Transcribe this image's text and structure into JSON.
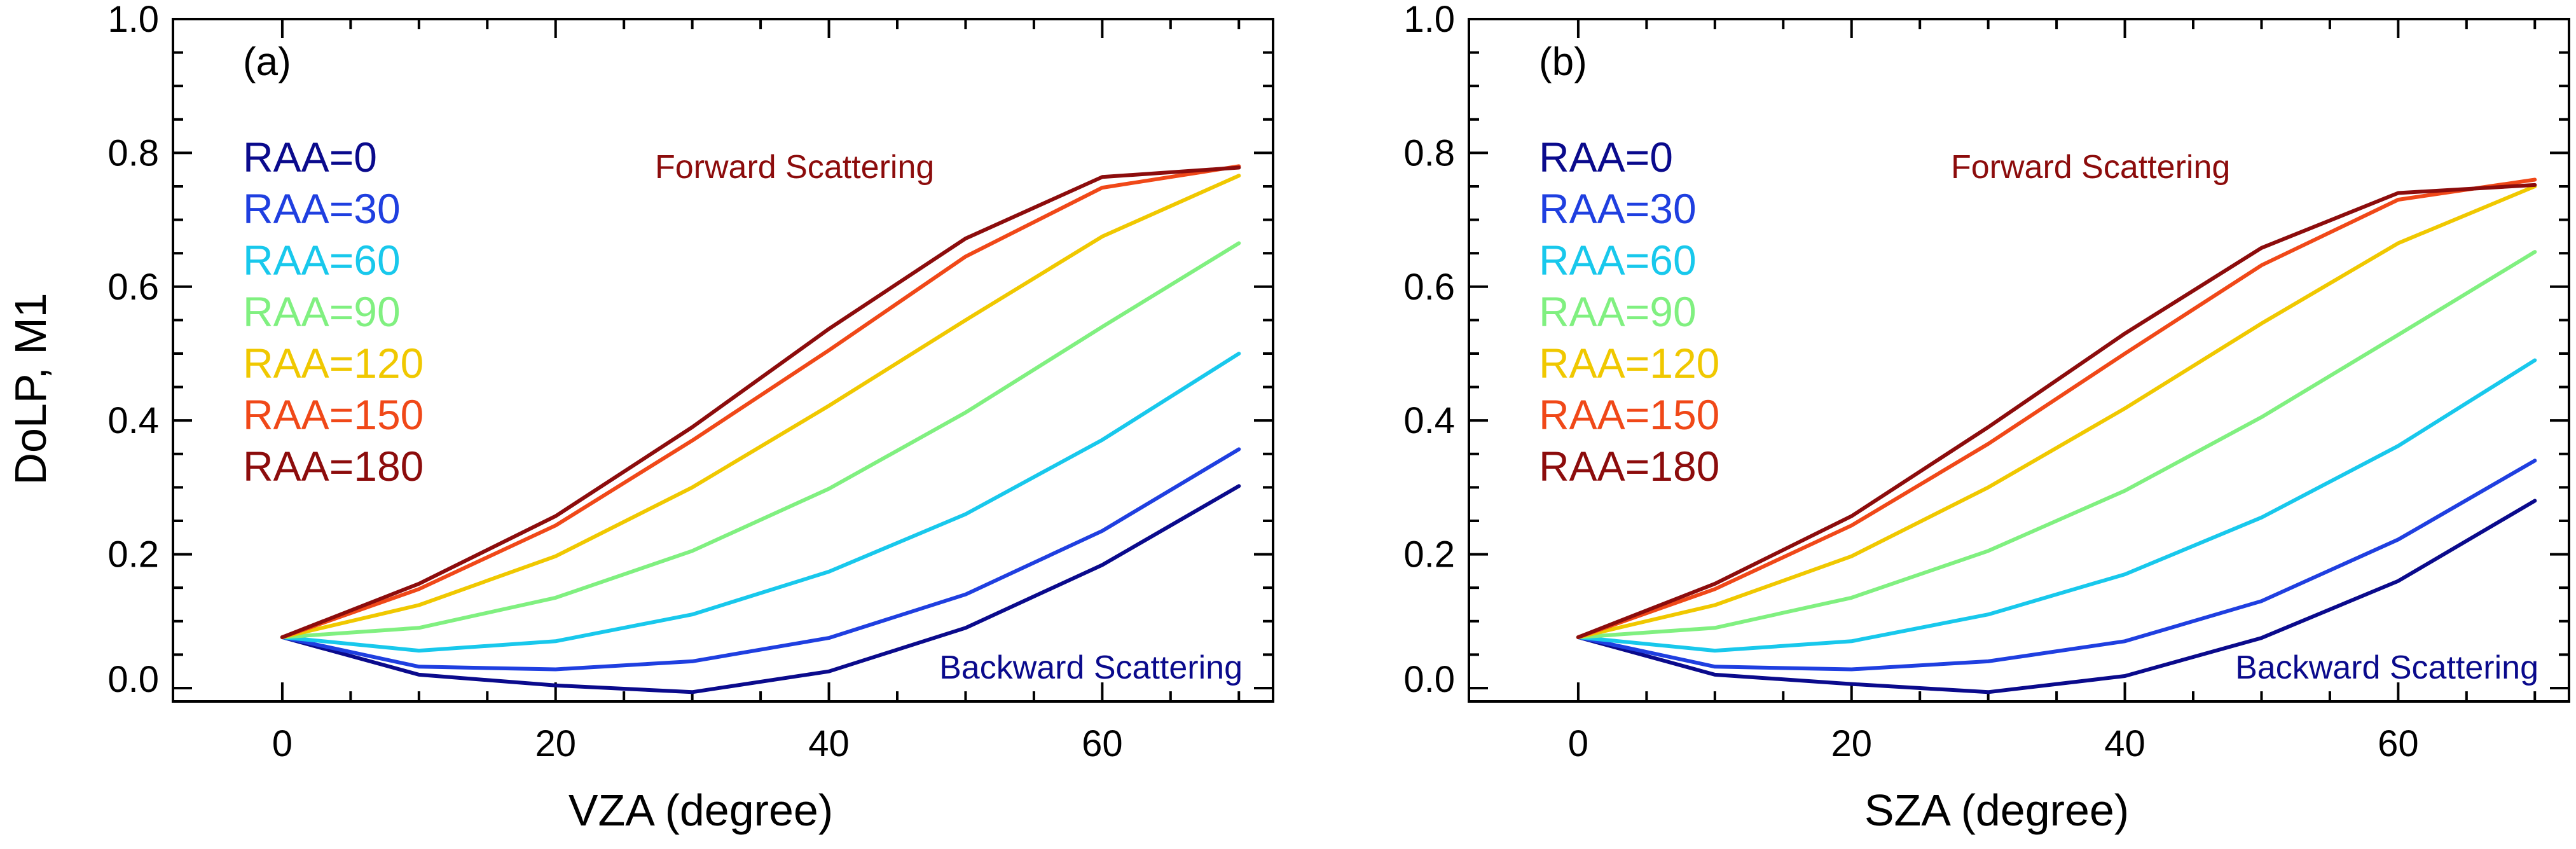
{
  "chart_data": [
    {
      "type": "line",
      "panel_label": "(a)",
      "xlabel": "VZA (degree)",
      "ylabel": "DoLP, M1",
      "xlim": [
        -8,
        72.5
      ],
      "ylim": [
        -0.02,
        1.0
      ],
      "xticks": [
        0,
        20,
        40,
        60
      ],
      "yticks": [
        0.0,
        0.2,
        0.4,
        0.6,
        0.8,
        1.0
      ],
      "xtick_labels": [
        "0",
        "20",
        "40",
        "60"
      ],
      "ytick_labels": [
        "0.0",
        "0.2",
        "0.4",
        "0.6",
        "0.8",
        "1.0"
      ],
      "x": [
        0,
        10,
        20,
        30,
        40,
        50,
        60,
        70
      ],
      "series": [
        {
          "name": "RAA=0",
          "color": "#0a0a8c",
          "values": [
            0.076,
            0.02,
            0.004,
            -0.006,
            0.025,
            0.09,
            0.184,
            0.302
          ]
        },
        {
          "name": "RAA=30",
          "color": "#1f3fe0",
          "values": [
            0.076,
            0.032,
            0.028,
            0.04,
            0.075,
            0.14,
            0.235,
            0.357
          ]
        },
        {
          "name": "RAA=60",
          "color": "#18c8ec",
          "values": [
            0.076,
            0.056,
            0.07,
            0.11,
            0.174,
            0.26,
            0.371,
            0.5
          ]
        },
        {
          "name": "RAA=90",
          "color": "#80f080",
          "values": [
            0.076,
            0.09,
            0.135,
            0.205,
            0.298,
            0.412,
            0.54,
            0.665
          ]
        },
        {
          "name": "RAA=120",
          "color": "#f0c800",
          "values": [
            0.076,
            0.124,
            0.197,
            0.3,
            0.422,
            0.55,
            0.675,
            0.766
          ]
        },
        {
          "name": "RAA=150",
          "color": "#f04818",
          "values": [
            0.076,
            0.148,
            0.243,
            0.37,
            0.505,
            0.645,
            0.748,
            0.78
          ]
        },
        {
          "name": "RAA=180",
          "color": "#8c0c0c",
          "values": [
            0.076,
            0.156,
            0.257,
            0.39,
            0.537,
            0.672,
            0.764,
            0.778
          ]
        }
      ],
      "annotations": [
        {
          "text": "Forward Scattering",
          "color": "#8c0c0c"
        },
        {
          "text": "Backward Scattering",
          "color": "#0a0a8c"
        }
      ]
    },
    {
      "type": "line",
      "panel_label": "(b)",
      "xlabel": "SZA (degree)",
      "ylabel": "",
      "xlim": [
        -8,
        72.5
      ],
      "ylim": [
        -0.02,
        1.0
      ],
      "xticks": [
        0,
        20,
        40,
        60
      ],
      "yticks": [
        0.0,
        0.2,
        0.4,
        0.6,
        0.8,
        1.0
      ],
      "xtick_labels": [
        "0",
        "20",
        "40",
        "60"
      ],
      "ytick_labels": [
        "0.0",
        "0.2",
        "0.4",
        "0.6",
        "0.8",
        "1.0"
      ],
      "x": [
        0,
        10,
        20,
        30,
        40,
        50,
        60,
        70
      ],
      "series": [
        {
          "name": "RAA=0",
          "color": "#0a0a8c",
          "values": [
            0.076,
            0.02,
            0.006,
            -0.006,
            0.018,
            0.075,
            0.16,
            0.28
          ]
        },
        {
          "name": "RAA=30",
          "color": "#1f3fe0",
          "values": [
            0.076,
            0.032,
            0.028,
            0.04,
            0.07,
            0.13,
            0.222,
            0.34
          ]
        },
        {
          "name": "RAA=60",
          "color": "#18c8ec",
          "values": [
            0.076,
            0.056,
            0.07,
            0.11,
            0.17,
            0.255,
            0.362,
            0.49
          ]
        },
        {
          "name": "RAA=90",
          "color": "#80f080",
          "values": [
            0.076,
            0.09,
            0.135,
            0.205,
            0.295,
            0.405,
            0.528,
            0.652
          ]
        },
        {
          "name": "RAA=120",
          "color": "#f0c800",
          "values": [
            0.076,
            0.124,
            0.197,
            0.3,
            0.418,
            0.545,
            0.665,
            0.75
          ]
        },
        {
          "name": "RAA=150",
          "color": "#f04818",
          "values": [
            0.076,
            0.148,
            0.243,
            0.365,
            0.5,
            0.632,
            0.73,
            0.76
          ]
        },
        {
          "name": "RAA=180",
          "color": "#8c0c0c",
          "values": [
            0.076,
            0.156,
            0.257,
            0.39,
            0.53,
            0.658,
            0.74,
            0.752
          ]
        }
      ],
      "annotations": [
        {
          "text": "Forward Scattering",
          "color": "#8c0c0c"
        },
        {
          "text": "Backward Scattering",
          "color": "#0a0a8c"
        }
      ]
    }
  ]
}
